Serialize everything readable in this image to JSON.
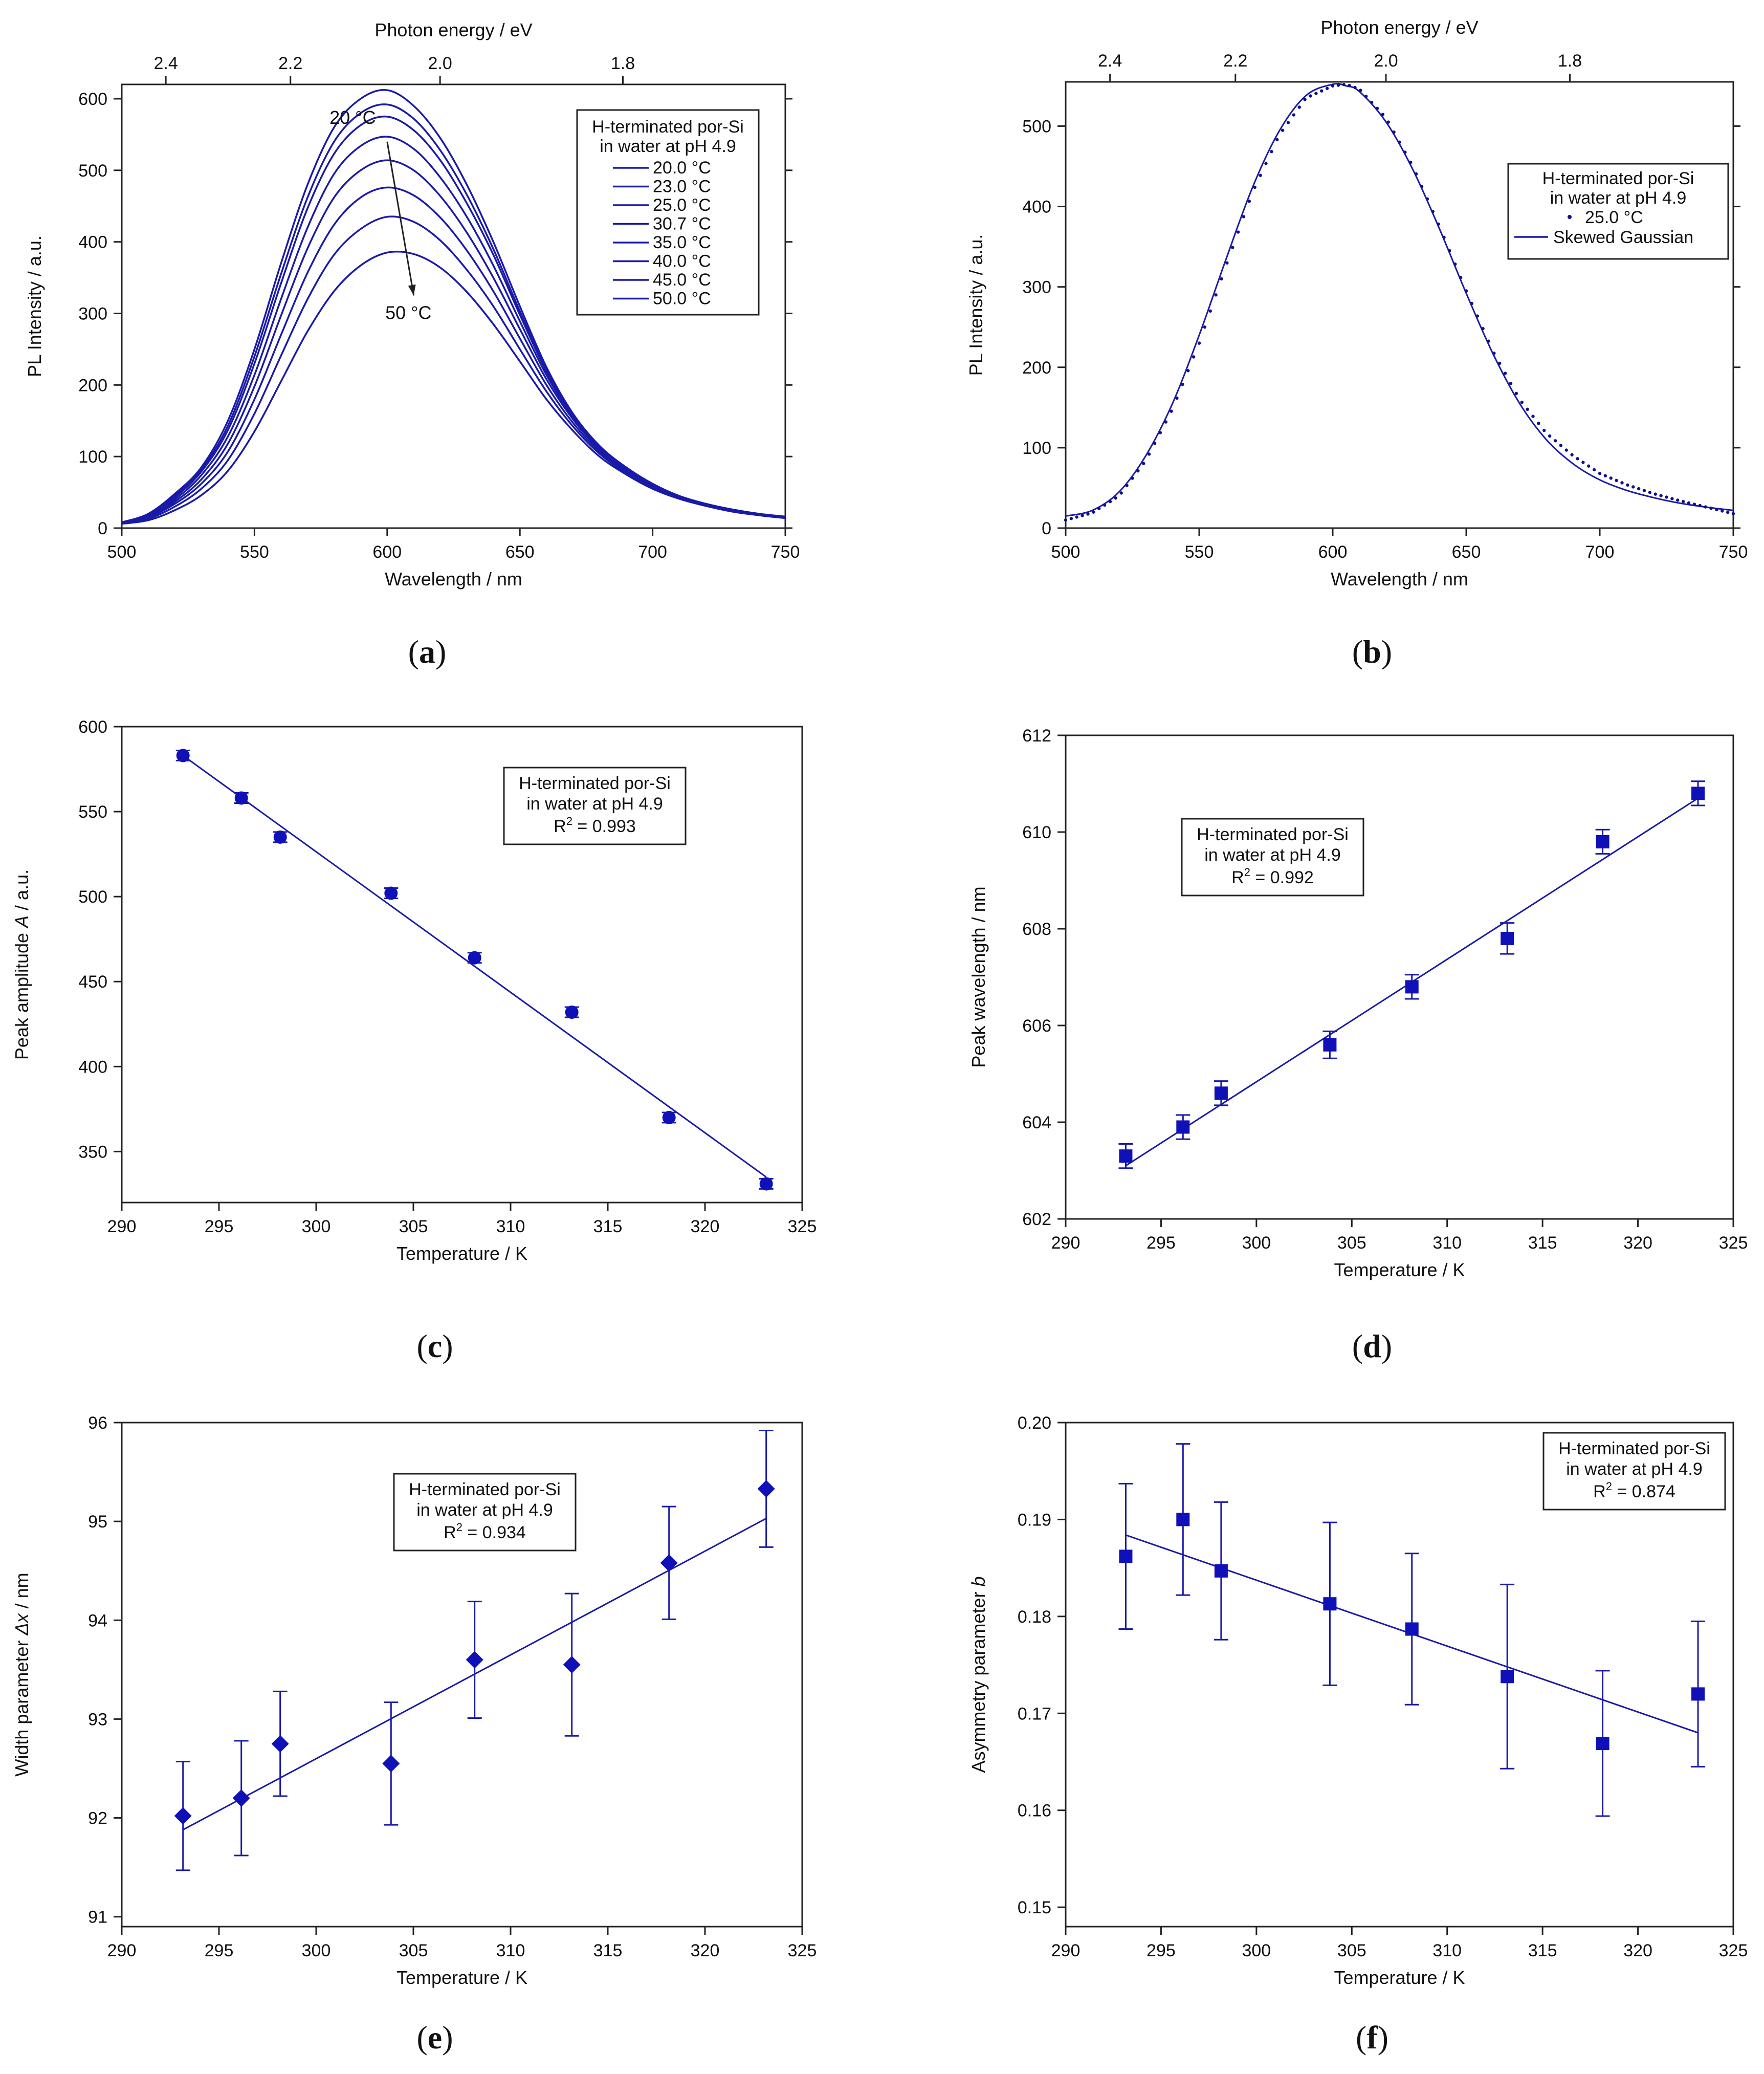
{
  "chart_data": [
    {
      "id": "a",
      "type": "line",
      "caption": "(a)",
      "panel_label": "a",
      "xlabel": "Wavelength / nm",
      "ylabel": "PL Intensity / a.u.",
      "x2label": "Photon energy / eV",
      "xlim": [
        500,
        750
      ],
      "ylim": [
        0,
        620
      ],
      "x_ticks": [
        500,
        550,
        600,
        650,
        700,
        750
      ],
      "y_ticks": [
        0,
        100,
        200,
        300,
        400,
        500,
        600
      ],
      "x2_ticks": [
        2.4,
        2.2,
        2.0,
        1.8
      ],
      "x2_tick_labels": [
        "2.4",
        "2.2",
        "2.0",
        "1.8"
      ],
      "legend_title": [
        "H-terminated por-Si",
        "in water at pH 4.9"
      ],
      "legend_position": "top-right",
      "annotations": [
        {
          "text": "20 °C",
          "x": 587,
          "y": 565
        },
        {
          "text": "50 °C",
          "x": 608,
          "y": 292
        }
      ],
      "arrow": {
        "from": [
          600,
          540
        ],
        "to": [
          610,
          325
        ]
      },
      "line_color": "#1a1aa8",
      "x": [
        500,
        510,
        520,
        530,
        540,
        550,
        560,
        570,
        580,
        590,
        600,
        610,
        620,
        630,
        640,
        650,
        660,
        670,
        680,
        690,
        700,
        710,
        720,
        730,
        740,
        750
      ],
      "series": [
        {
          "name": "20.0 °C",
          "values": [
            8,
            20,
            48,
            85,
            150,
            250,
            370,
            480,
            560,
            600,
            612,
            590,
            545,
            480,
            400,
            310,
            225,
            160,
            115,
            85,
            62,
            45,
            34,
            26,
            20,
            16
          ]
        },
        {
          "name": "23.0 °C",
          "values": [
            8,
            19,
            45,
            82,
            143,
            240,
            355,
            462,
            540,
            580,
            592,
            572,
            528,
            466,
            390,
            303,
            222,
            159,
            114,
            84,
            61,
            45,
            34,
            26,
            20,
            16
          ]
        },
        {
          "name": "25.0 °C",
          "values": [
            8,
            18,
            43,
            79,
            137,
            230,
            342,
            447,
            523,
            563,
            575,
            556,
            514,
            454,
            382,
            298,
            219,
            158,
            113,
            83,
            60,
            44,
            33,
            25,
            19,
            15
          ]
        },
        {
          "name": "30.7 °C",
          "values": [
            7,
            17,
            40,
            74,
            128,
            214,
            320,
            420,
            495,
            534,
            547,
            530,
            490,
            435,
            367,
            289,
            214,
            155,
            111,
            82,
            60,
            44,
            33,
            25,
            19,
            15
          ]
        },
        {
          "name": "35.0 °C",
          "values": [
            7,
            16,
            37,
            68,
            118,
            198,
            297,
            391,
            462,
            500,
            514,
            500,
            464,
            413,
            350,
            278,
            208,
            152,
            110,
            81,
            59,
            43,
            32,
            24,
            19,
            15
          ]
        },
        {
          "name": "40.0 °C",
          "values": [
            7,
            15,
            34,
            62,
            107,
            180,
            270,
            357,
            424,
            462,
            476,
            465,
            434,
            388,
            331,
            265,
            200,
            147,
            107,
            79,
            58,
            43,
            32,
            24,
            18,
            14
          ]
        },
        {
          "name": "45.0 °C",
          "values": [
            6,
            13,
            30,
            55,
            95,
            160,
            241,
            320,
            382,
            418,
            435,
            428,
            402,
            361,
            310,
            250,
            191,
            142,
            104,
            77,
            57,
            42,
            31,
            24,
            18,
            14
          ]
        },
        {
          "name": "50.0 °C",
          "values": [
            6,
            11,
            25,
            46,
            80,
            135,
            205,
            275,
            331,
            367,
            385,
            383,
            364,
            330,
            285,
            233,
            180,
            136,
            100,
            75,
            55,
            41,
            31,
            23,
            18,
            14
          ]
        }
      ]
    },
    {
      "id": "b",
      "type": "line",
      "caption": "(b)",
      "panel_label": "b",
      "xlabel": "Wavelength / nm",
      "ylabel": "PL Intensity / a.u.",
      "x2label": "Photon energy / eV",
      "xlim": [
        500,
        750
      ],
      "ylim": [
        0,
        555
      ],
      "x_ticks": [
        500,
        550,
        600,
        650,
        700,
        750
      ],
      "y_ticks": [
        0,
        100,
        200,
        300,
        400,
        500
      ],
      "x2_ticks": [
        2.4,
        2.2,
        2.0,
        1.8
      ],
      "x2_tick_labels": [
        "2.4",
        "2.2",
        "2.0",
        "1.8"
      ],
      "legend_title": [
        "H-terminated por-Si",
        "in water at pH 4.9"
      ],
      "legend_position": "right",
      "line_color": "#1a1aa8",
      "x": [
        500,
        510,
        520,
        530,
        540,
        550,
        560,
        570,
        580,
        590,
        600,
        605,
        610,
        620,
        630,
        640,
        650,
        660,
        670,
        680,
        690,
        700,
        710,
        720,
        730,
        740,
        750
      ],
      "series": [
        {
          "name": "25.0 °C",
          "style": "markers",
          "values": [
            10,
            19,
            40,
            84,
            148,
            230,
            326,
            418,
            489,
            535,
            550,
            552,
            546,
            510,
            450,
            375,
            295,
            220,
            160,
            118,
            90,
            68,
            54,
            43,
            34,
            26,
            18
          ]
        },
        {
          "name": "Skewed Gaussian",
          "style": "line",
          "values": [
            15,
            22,
            45,
            90,
            155,
            240,
            334,
            424,
            494,
            538,
            552,
            550,
            543,
            505,
            446,
            372,
            292,
            217,
            155,
            110,
            80,
            60,
            47,
            38,
            31,
            26,
            22
          ]
        }
      ]
    },
    {
      "id": "c",
      "type": "scatter",
      "caption": "(c)",
      "panel_label": "c",
      "xlabel": "Temperature / K",
      "ylabel_parts": [
        "Peak amplitude ",
        "A",
        " / a.u."
      ],
      "xlim": [
        290,
        325
      ],
      "ylim": [
        320,
        600
      ],
      "x_ticks": [
        290,
        295,
        300,
        305,
        310,
        315,
        320,
        325
      ],
      "y_ticks": [
        350,
        400,
        450,
        500,
        550,
        600
      ],
      "legend": [
        "H-terminated por-Si",
        "in water at pH 4.9",
        "R",
        "2",
        " = 0.993"
      ],
      "legend_position": "top-right",
      "marker": "circle",
      "line_color": "#1a1aa8",
      "series": [
        {
          "name": "Peak amplitude",
          "x": [
            293.15,
            296.15,
            298.15,
            303.85,
            308.15,
            313.15,
            318.15,
            323.15
          ],
          "values": [
            583,
            558,
            535,
            502,
            464,
            432,
            370,
            331
          ],
          "errors": [
            3,
            3,
            3,
            3,
            3,
            3,
            3,
            3
          ]
        }
      ],
      "fit": {
        "x": [
          293.15,
          323.15
        ],
        "values": [
          583,
          335
        ]
      }
    },
    {
      "id": "d",
      "type": "scatter",
      "caption": "(d)",
      "panel_label": "d",
      "xlabel": "Temperature / K",
      "ylabel": "Peak wavelength / nm",
      "xlim": [
        290,
        325
      ],
      "ylim": [
        602,
        612
      ],
      "x_ticks": [
        290,
        295,
        300,
        305,
        310,
        315,
        320,
        325
      ],
      "y_ticks": [
        602,
        604,
        606,
        608,
        610,
        612
      ],
      "legend": [
        "H-terminated por-Si",
        "in water at pH 4.9",
        "R",
        "2",
        " = 0.992"
      ],
      "legend_position": "top-left",
      "marker": "square",
      "line_color": "#1a1aa8",
      "series": [
        {
          "name": "Peak wavelength",
          "x": [
            293.15,
            296.15,
            298.15,
            303.85,
            308.15,
            313.15,
            318.15,
            323.15
          ],
          "values": [
            603.3,
            603.9,
            604.6,
            605.6,
            606.8,
            607.8,
            609.8,
            610.8
          ],
          "errors": [
            0.25,
            0.25,
            0.25,
            0.28,
            0.25,
            0.32,
            0.25,
            0.25
          ]
        }
      ],
      "fit": {
        "x": [
          293.15,
          323.15
        ],
        "values": [
          603.1,
          610.7
        ]
      }
    },
    {
      "id": "e",
      "type": "scatter",
      "caption": "(e)",
      "panel_label": "e",
      "xlabel": "Temperature / K",
      "ylabel_parts": [
        "Width parameter ",
        "Δx",
        " / nm"
      ],
      "xlim": [
        290,
        325
      ],
      "ylim": [
        90.9,
        96
      ],
      "x_ticks": [
        290,
        295,
        300,
        305,
        310,
        315,
        320,
        325
      ],
      "y_ticks": [
        91,
        92,
        93,
        94,
        95,
        96
      ],
      "legend": [
        "H-terminated por-Si",
        "in water at pH 4.9",
        "R",
        "2",
        " = 0.934"
      ],
      "legend_position": "top-center",
      "marker": "diamond",
      "line_color": "#1a1aa8",
      "series": [
        {
          "name": "Width parameter",
          "x": [
            293.15,
            296.15,
            298.15,
            303.85,
            308.15,
            313.15,
            318.15,
            323.15
          ],
          "values": [
            92.02,
            92.2,
            92.75,
            92.55,
            93.6,
            93.55,
            94.58,
            95.33
          ],
          "errors": [
            0.55,
            0.58,
            0.53,
            0.62,
            0.59,
            0.72,
            0.57,
            0.59
          ]
        }
      ],
      "fit": {
        "x": [
          293.15,
          323.15
        ],
        "values": [
          91.88,
          95.03
        ]
      }
    },
    {
      "id": "f",
      "type": "scatter",
      "caption": "(f)",
      "panel_label": "f",
      "xlabel": "Temperature / K",
      "ylabel_parts": [
        "Asymmetry parameter ",
        "b",
        ""
      ],
      "xlim": [
        290,
        325
      ],
      "ylim": [
        0.148,
        0.2
      ],
      "x_ticks": [
        290,
        295,
        300,
        305,
        310,
        315,
        320,
        325
      ],
      "y_ticks": [
        0.15,
        0.16,
        0.17,
        0.18,
        0.19,
        0.2
      ],
      "y_tick_labels": [
        "0.15",
        "0.16",
        "0.17",
        "0.18",
        "0.19",
        "0.20"
      ],
      "legend": [
        "H-terminated por-Si",
        "in water at pH 4.9",
        "R",
        "2",
        " = 0.874"
      ],
      "legend_position": "top-right",
      "marker": "square",
      "line_color": "#1a1aa8",
      "series": [
        {
          "name": "Asymmetry parameter",
          "x": [
            293.15,
            296.15,
            298.15,
            303.85,
            308.15,
            313.15,
            318.15,
            323.15
          ],
          "values": [
            0.1862,
            0.19,
            0.1847,
            0.1813,
            0.1787,
            0.1738,
            0.1669,
            0.172
          ],
          "errors": [
            0.0075,
            0.0078,
            0.0071,
            0.0084,
            0.0078,
            0.0095,
            0.0075,
            0.0075
          ]
        }
      ],
      "fit": {
        "x": [
          293.15,
          323.15
        ],
        "values": [
          0.1884,
          0.168
        ]
      }
    }
  ]
}
